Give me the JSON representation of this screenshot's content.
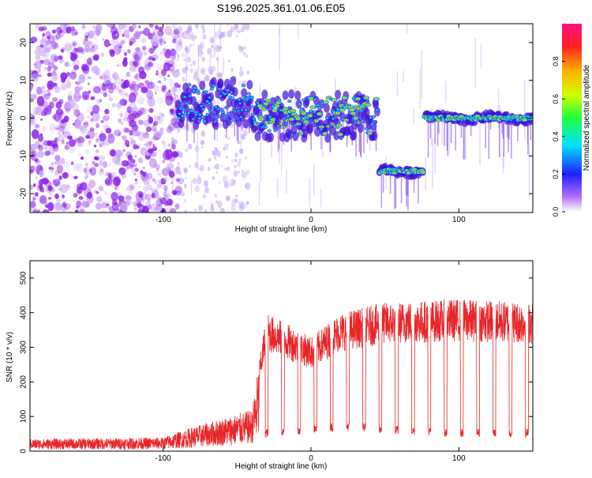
{
  "title": "S196.2025.361.01.06.E05",
  "chart_data": [
    {
      "type": "heatmap",
      "xlabel": "Height of straight line (km)",
      "ylabel": "Frequency (Hz)",
      "xlim": [
        -190,
        150
      ],
      "ylim": [
        -25,
        25
      ],
      "xticks": [
        -100,
        0,
        100
      ],
      "yticks": [
        -20,
        -10,
        0,
        10,
        20
      ],
      "colorbar": {
        "label": "Normalized spectral amplitude",
        "range": [
          0,
          1
        ],
        "ticks": [
          0.0,
          0.2,
          0.4,
          0.6,
          0.8
        ],
        "tick_labels": [
          "0.0",
          "0.2",
          "0.4",
          "0.6",
          "0.8"
        ]
      },
      "ridge": [
        {
          "x0": -190,
          "x1": -90,
          "freq": null,
          "description": "broadband noise"
        },
        {
          "x0": -90,
          "x1": -40,
          "freq": 4,
          "peak_amplitude": 0.4
        },
        {
          "x0": -40,
          "x1": 45,
          "freq": 0.5,
          "peak_amplitude": 0.85
        },
        {
          "x0": 46,
          "x1": 76,
          "freq": -14,
          "peak_amplitude": 1.0
        },
        {
          "x0": 77,
          "x1": 150,
          "freq": 0,
          "peak_amplitude": 1.0
        }
      ]
    },
    {
      "type": "line",
      "xlabel": "Height of straight line (km)",
      "ylabel": "SNR (10 * v/v)",
      "xlim": [
        -190,
        150
      ],
      "ylim": [
        0,
        550
      ],
      "xticks": [
        -100,
        0,
        100
      ],
      "yticks": [
        0,
        100,
        200,
        300,
        400,
        500
      ],
      "color": "#e8262a",
      "series": [
        {
          "name": "SNR",
          "profile": [
            {
              "x": -190,
              "low": 5,
              "high": 35
            },
            {
              "x": -100,
              "low": 5,
              "high": 40
            },
            {
              "x": -80,
              "low": 10,
              "high": 70
            },
            {
              "x": -40,
              "low": 20,
              "high": 120
            },
            {
              "x": -30,
              "low": 40,
              "high": 400
            },
            {
              "x": 0,
              "low": 50,
              "high": 330
            },
            {
              "x": 20,
              "low": 60,
              "high": 400
            },
            {
              "x": 50,
              "low": 50,
              "high": 430
            },
            {
              "x": 100,
              "low": 40,
              "high": 440
            },
            {
              "x": 150,
              "low": 40,
              "high": 430
            }
          ]
        }
      ]
    }
  ]
}
